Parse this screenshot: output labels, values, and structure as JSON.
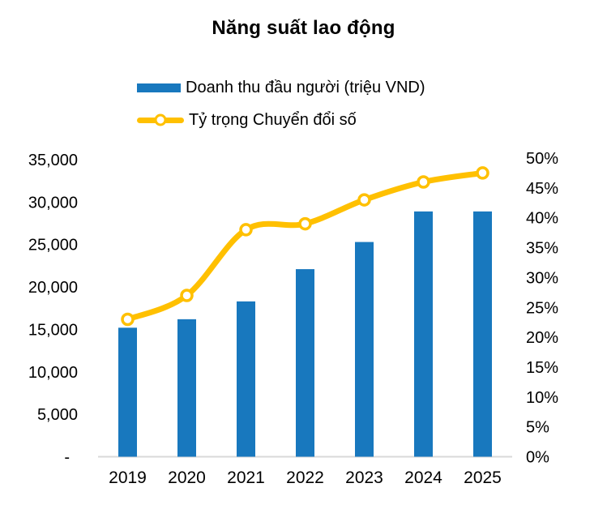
{
  "title": "Năng suất lao động",
  "colors": {
    "bar": "#1878BE",
    "line": "#FFC000",
    "axis_line": "#D9D9D9",
    "text": "#000000",
    "marker_fill": "#FFFFFF"
  },
  "legend": {
    "items": [
      {
        "label": "Doanh thu đầu người (triệu VND)",
        "type": "bar",
        "color": "#1878BE"
      },
      {
        "label": "Tỷ trọng Chuyển đổi số",
        "type": "line",
        "color": "#FFC000"
      }
    ],
    "position": "top-left"
  },
  "chart_data": {
    "type": "bar",
    "subtype": "combo-bar-line-dual-axis",
    "title": "Năng suất lao động",
    "categories": [
      "2019",
      "2020",
      "2021",
      "2022",
      "2023",
      "2024",
      "2025"
    ],
    "series": [
      {
        "name": "Doanh thu đầu người (triệu VND)",
        "type": "bar",
        "axis": "left",
        "color": "#1878BE",
        "values": [
          15200,
          16200,
          18300,
          22100,
          25300,
          28900,
          28900
        ]
      },
      {
        "name": "Tỷ trọng Chuyển đổi số",
        "type": "line",
        "axis": "right",
        "color": "#FFC000",
        "values": [
          23,
          27,
          38,
          39,
          43,
          46,
          47.5
        ]
      }
    ],
    "left_axis": {
      "min": 0,
      "max": 35000,
      "step": 5000,
      "tick_labels": [
        "-",
        "5,000",
        "10,000",
        "15,000",
        "20,000",
        "25,000",
        "30,000",
        "35,000"
      ]
    },
    "right_axis": {
      "min": 0,
      "max": 50,
      "step": 5,
      "unit": "%",
      "tick_labels": [
        "0%",
        "5%",
        "10%",
        "15%",
        "20%",
        "25%",
        "30%",
        "35%",
        "40%",
        "45%",
        "50%"
      ]
    },
    "grid": false,
    "legend_position": "top",
    "line_style": "smooth",
    "marker": "circle-white-fill"
  }
}
